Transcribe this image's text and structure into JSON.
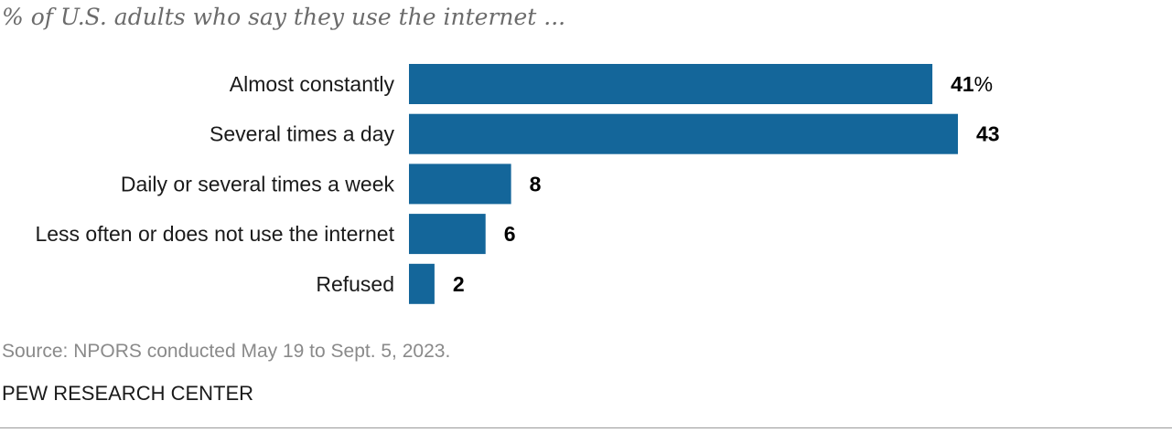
{
  "subtitle": "% of U.S. adults who say they use the internet ...",
  "chart_data": {
    "type": "bar",
    "orientation": "horizontal",
    "categories": [
      "Almost constantly",
      "Several times a day",
      "Daily or several times a week",
      "Less often or does not use the internet",
      "Refused"
    ],
    "values": [
      41,
      43,
      8,
      6,
      2
    ],
    "value_labels": [
      "41",
      "43",
      "8",
      "6",
      "2"
    ],
    "first_label_suffix": "%",
    "unit": "%",
    "xlim": [
      0,
      43
    ],
    "grid": false,
    "legend": "none",
    "bar_color": "#14669a"
  },
  "source": "Source: NPORS conducted May 19 to Sept. 5, 2023.",
  "brand": "PEW RESEARCH CENTER",
  "colors": {
    "bar": "#14669a",
    "subtitle": "#6b6b6b",
    "source": "#8a8a8a",
    "rule": "#9a9a9a"
  }
}
